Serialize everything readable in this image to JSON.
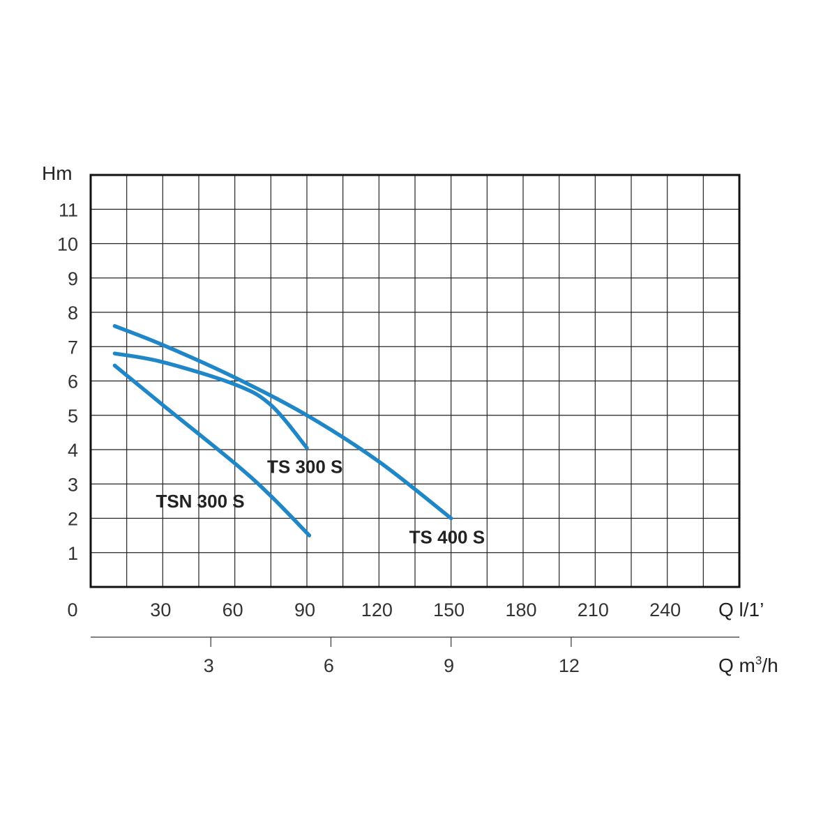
{
  "chart_data": {
    "type": "line",
    "ylabel": "Hm",
    "xlabel": "Q l/1’",
    "x2label_prefix": "Q m",
    "x2label_sup": "3",
    "x2label_suffix": "/h",
    "xlim": [
      0,
      270
    ],
    "ylim": [
      0,
      12
    ],
    "x_ticks": [
      0,
      30,
      60,
      90,
      120,
      150,
      180,
      210,
      240
    ],
    "x_tick_labels": [
      "0",
      "30",
      "60",
      "90",
      "120",
      "150",
      "180",
      "210",
      "240"
    ],
    "y_ticks": [
      1,
      2,
      3,
      4,
      5,
      6,
      7,
      8,
      9,
      10,
      11
    ],
    "y_tick_labels": [
      "1",
      "2",
      "3",
      "4",
      "5",
      "6",
      "7",
      "8",
      "9",
      "10",
      "11"
    ],
    "x2_ticks": [
      3,
      6,
      9,
      12
    ],
    "x2_tick_labels": [
      "3",
      "6",
      "9",
      "12"
    ],
    "x2_lim": [
      0,
      16.2
    ],
    "grid_step_x": 15,
    "grid": true,
    "line_color": "#1f86c7",
    "series": [
      {
        "name": "TS 400 S",
        "x": [
          10,
          30,
          60,
          90,
          120,
          150
        ],
        "y": [
          7.6,
          7.05,
          6.1,
          5.0,
          3.65,
          2.0
        ]
      },
      {
        "name": "TS 300 S",
        "x": [
          10,
          30,
          60,
          75,
          90
        ],
        "y": [
          6.8,
          6.55,
          5.9,
          5.3,
          4.05
        ]
      },
      {
        "name": "TSN 300 S",
        "x": [
          10,
          30,
          60,
          75,
          91
        ],
        "y": [
          6.45,
          5.3,
          3.6,
          2.65,
          1.5
        ]
      }
    ]
  }
}
